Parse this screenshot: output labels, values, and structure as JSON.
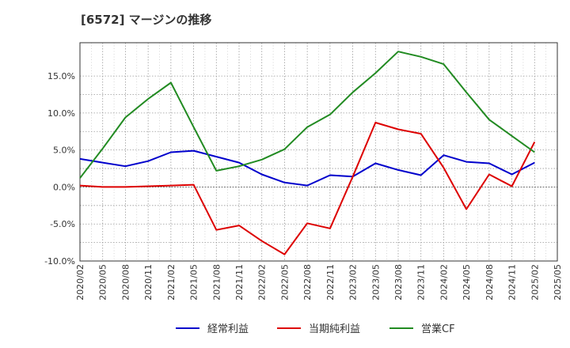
{
  "chart_data": {
    "type": "line",
    "title": "[6572]  マージンの推移",
    "x": [
      "2020/02",
      "2020/05",
      "2020/08",
      "2020/11",
      "2021/02",
      "2021/05",
      "2021/08",
      "2021/11",
      "2022/02",
      "2022/05",
      "2022/08",
      "2022/11",
      "2023/02",
      "2023/05",
      "2023/08",
      "2023/11",
      "2024/02",
      "2024/05",
      "2024/08",
      "2024/11",
      "2025/02"
    ],
    "xticks": [
      "2020/02",
      "2020/05",
      "2020/08",
      "2020/11",
      "2021/02",
      "2021/05",
      "2021/08",
      "2021/11",
      "2022/02",
      "2022/05",
      "2022/08",
      "2022/11",
      "2023/02",
      "2023/05",
      "2023/08",
      "2023/11",
      "2024/02",
      "2024/05",
      "2024/08",
      "2024/11",
      "2025/02",
      "2025/05"
    ],
    "yticks": [
      "15.0%",
      "10.0%",
      "5.0%",
      "0.0%",
      "-5.0%",
      "-10.0%"
    ],
    "ylim": [
      -10,
      19.5
    ],
    "grid": true,
    "legend_position": "bottom",
    "series": [
      {
        "name": "経常利益",
        "color": "#0000cc",
        "values": [
          3.8,
          3.3,
          2.8,
          3.5,
          4.7,
          4.9,
          4.1,
          3.3,
          1.7,
          0.6,
          0.2,
          1.6,
          1.4,
          3.2,
          2.3,
          1.6,
          4.3,
          3.4,
          3.2,
          1.7,
          3.3
        ]
      },
      {
        "name": "当期純利益",
        "color": "#dd0000",
        "values": [
          0.2,
          0.0,
          0.0,
          0.1,
          0.2,
          0.3,
          -5.8,
          -5.2,
          -7.3,
          -9.1,
          -4.9,
          -5.6,
          1.4,
          8.7,
          7.8,
          7.2,
          2.6,
          -3.0,
          1.7,
          0.1,
          6.1
        ]
      },
      {
        "name": "営業CF",
        "color": "#228b22",
        "values": [
          1.2,
          5.2,
          9.4,
          11.9,
          14.1,
          8.1,
          2.2,
          2.8,
          3.7,
          5.1,
          8.1,
          9.8,
          12.8,
          15.4,
          18.3,
          17.6,
          16.6,
          12.8,
          9.1,
          6.9,
          4.7
        ]
      }
    ]
  }
}
